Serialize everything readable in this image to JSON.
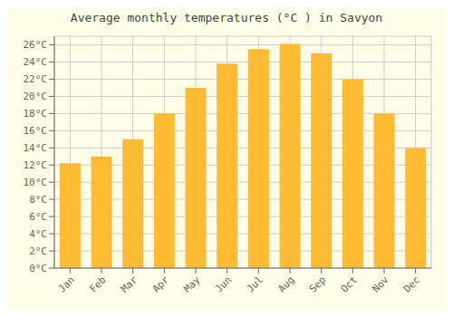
{
  "chart_data": {
    "type": "bar",
    "title": "Average monthly temperatures (°C ) in Savyon",
    "categories": [
      "Jan",
      "Feb",
      "Mar",
      "Apr",
      "May",
      "Jun",
      "Jul",
      "Aug",
      "Sep",
      "Oct",
      "Nov",
      "Dec"
    ],
    "values": [
      12.2,
      13.0,
      15.0,
      18.0,
      21.0,
      23.8,
      25.5,
      26.1,
      25.0,
      22.0,
      18.0,
      14.0
    ],
    "color": "#FFBB33",
    "ylim": [
      0,
      27
    ],
    "yticks": [
      {
        "value": 0,
        "label": "0°C"
      },
      {
        "value": 2,
        "label": "2°C"
      },
      {
        "value": 4,
        "label": "4°C"
      },
      {
        "value": 6,
        "label": "6°C"
      },
      {
        "value": 8,
        "label": "8°C"
      },
      {
        "value": 10,
        "label": "10°C"
      },
      {
        "value": 12,
        "label": "12°C"
      },
      {
        "value": 14,
        "label": "14°C"
      },
      {
        "value": 16,
        "label": "16°C"
      },
      {
        "value": 18,
        "label": "18°C"
      },
      {
        "value": 20,
        "label": "20°C"
      },
      {
        "value": 22,
        "label": "22°C"
      },
      {
        "value": 24,
        "label": "24°C"
      },
      {
        "value": 26,
        "label": "26°C"
      }
    ],
    "grid": true
  }
}
